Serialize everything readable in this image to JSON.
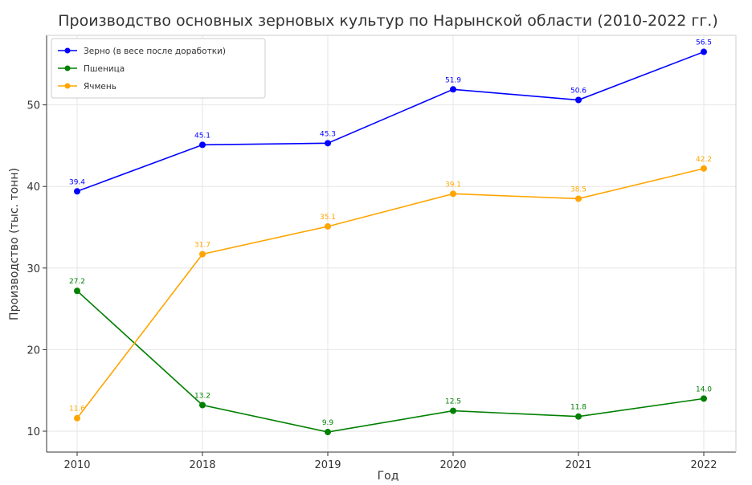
{
  "chart_data": {
    "type": "line",
    "title": "Производство основных зерновых культур по Нарынской области (2010-2022 гг.)",
    "xlabel": "Год",
    "ylabel": "Производство (тыс. тонн)",
    "categories": [
      "2010",
      "2018",
      "2019",
      "2020",
      "2021",
      "2022"
    ],
    "ylim": [
      8.9,
      58.0
    ],
    "yticks": [
      "10",
      "20",
      "30",
      "40",
      "50"
    ],
    "grid": true,
    "legend_position": "top-left",
    "series": [
      {
        "name": "Зерно (в весе после доработки)",
        "color": "#0000ff",
        "values": [
          39.4,
          45.1,
          45.3,
          51.9,
          50.6,
          56.5
        ],
        "labels": [
          "39.4",
          "45.1",
          "45.3",
          "51.9",
          "50.6",
          "56.5"
        ]
      },
      {
        "name": "Пшеница",
        "color": "#008000",
        "values": [
          27.2,
          13.2,
          9.9,
          12.5,
          11.8,
          14.0
        ],
        "labels": [
          "27.2",
          "13.2",
          "9.9",
          "12.5",
          "11.8",
          "14.0"
        ]
      },
      {
        "name": "Ячмень",
        "color": "#ffa500",
        "values": [
          11.6,
          31.7,
          35.1,
          39.1,
          38.5,
          42.2
        ],
        "labels": [
          "11.6",
          "31.7",
          "35.1",
          "39.1",
          "38.5",
          "42.2"
        ]
      }
    ]
  }
}
